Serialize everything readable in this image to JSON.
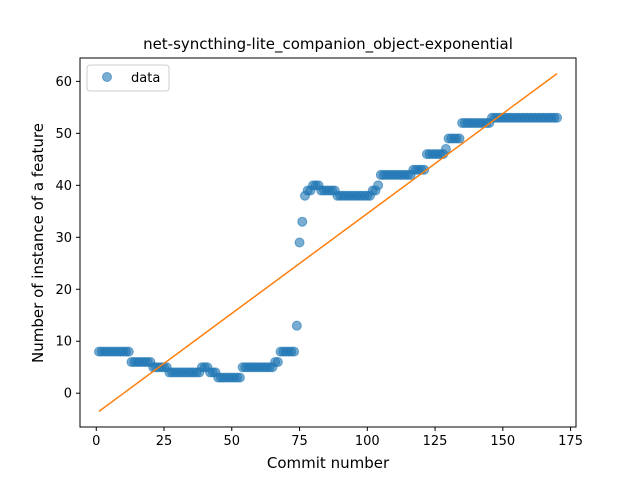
{
  "chart_data": {
    "type": "scatter",
    "title": "net-syncthing-lite_companion_object-exponential",
    "xlabel": "Commit number",
    "ylabel": "Number of instance of a feature",
    "xlim": [
      -6,
      177
    ],
    "ylim": [
      -6.5,
      64.5
    ],
    "xticks": [
      0,
      25,
      50,
      75,
      100,
      125,
      150,
      175
    ],
    "yticks": [
      0,
      10,
      20,
      30,
      40,
      50,
      60
    ],
    "grid": false,
    "legend": {
      "placement": "top-left",
      "entries": [
        "data"
      ]
    },
    "series": [
      {
        "name": "data",
        "kind": "scatter",
        "color": "#1f77b4",
        "points": [
          [
            1,
            8
          ],
          [
            2,
            8
          ],
          [
            3,
            8
          ],
          [
            4,
            8
          ],
          [
            5,
            8
          ],
          [
            6,
            8
          ],
          [
            7,
            8
          ],
          [
            8,
            8
          ],
          [
            9,
            8
          ],
          [
            10,
            8
          ],
          [
            11,
            8
          ],
          [
            12,
            8
          ],
          [
            13,
            6
          ],
          [
            14,
            6
          ],
          [
            15,
            6
          ],
          [
            16,
            6
          ],
          [
            17,
            6
          ],
          [
            18,
            6
          ],
          [
            19,
            6
          ],
          [
            20,
            6
          ],
          [
            21,
            5
          ],
          [
            22,
            5
          ],
          [
            23,
            5
          ],
          [
            24,
            5
          ],
          [
            25,
            5
          ],
          [
            26,
            5
          ],
          [
            27,
            4
          ],
          [
            28,
            4
          ],
          [
            29,
            4
          ],
          [
            30,
            4
          ],
          [
            31,
            4
          ],
          [
            32,
            4
          ],
          [
            33,
            4
          ],
          [
            34,
            4
          ],
          [
            35,
            4
          ],
          [
            36,
            4
          ],
          [
            37,
            4
          ],
          [
            38,
            4
          ],
          [
            39,
            5
          ],
          [
            40,
            5
          ],
          [
            41,
            5
          ],
          [
            42,
            4
          ],
          [
            43,
            4
          ],
          [
            44,
            4
          ],
          [
            45,
            3
          ],
          [
            46,
            3
          ],
          [
            47,
            3
          ],
          [
            48,
            3
          ],
          [
            49,
            3
          ],
          [
            50,
            3
          ],
          [
            51,
            3
          ],
          [
            52,
            3
          ],
          [
            53,
            3
          ],
          [
            54,
            5
          ],
          [
            55,
            5
          ],
          [
            56,
            5
          ],
          [
            57,
            5
          ],
          [
            58,
            5
          ],
          [
            59,
            5
          ],
          [
            60,
            5
          ],
          [
            61,
            5
          ],
          [
            62,
            5
          ],
          [
            63,
            5
          ],
          [
            64,
            5
          ],
          [
            65,
            5
          ],
          [
            66,
            6
          ],
          [
            67,
            6
          ],
          [
            68,
            8
          ],
          [
            69,
            8
          ],
          [
            70,
            8
          ],
          [
            71,
            8
          ],
          [
            72,
            8
          ],
          [
            73,
            8
          ],
          [
            74,
            13
          ],
          [
            75,
            29
          ],
          [
            76,
            33
          ],
          [
            77,
            38
          ],
          [
            78,
            39
          ],
          [
            79,
            39
          ],
          [
            80,
            40
          ],
          [
            81,
            40
          ],
          [
            82,
            40
          ],
          [
            83,
            39
          ],
          [
            84,
            39
          ],
          [
            85,
            39
          ],
          [
            86,
            39
          ],
          [
            87,
            39
          ],
          [
            88,
            39
          ],
          [
            89,
            38
          ],
          [
            90,
            38
          ],
          [
            91,
            38
          ],
          [
            92,
            38
          ],
          [
            93,
            38
          ],
          [
            94,
            38
          ],
          [
            95,
            38
          ],
          [
            96,
            38
          ],
          [
            97,
            38
          ],
          [
            98,
            38
          ],
          [
            99,
            38
          ],
          [
            100,
            38
          ],
          [
            101,
            38
          ],
          [
            102,
            39
          ],
          [
            103,
            39
          ],
          [
            104,
            40
          ],
          [
            105,
            42
          ],
          [
            106,
            42
          ],
          [
            107,
            42
          ],
          [
            108,
            42
          ],
          [
            109,
            42
          ],
          [
            110,
            42
          ],
          [
            111,
            42
          ],
          [
            112,
            42
          ],
          [
            113,
            42
          ],
          [
            114,
            42
          ],
          [
            115,
            42
          ],
          [
            116,
            42
          ],
          [
            117,
            43
          ],
          [
            118,
            43
          ],
          [
            119,
            43
          ],
          [
            120,
            43
          ],
          [
            121,
            43
          ],
          [
            122,
            46
          ],
          [
            123,
            46
          ],
          [
            124,
            46
          ],
          [
            125,
            46
          ],
          [
            126,
            46
          ],
          [
            127,
            46
          ],
          [
            128,
            46
          ],
          [
            129,
            47
          ],
          [
            130,
            49
          ],
          [
            131,
            49
          ],
          [
            132,
            49
          ],
          [
            133,
            49
          ],
          [
            134,
            49
          ],
          [
            135,
            52
          ],
          [
            136,
            52
          ],
          [
            137,
            52
          ],
          [
            138,
            52
          ],
          [
            139,
            52
          ],
          [
            140,
            52
          ],
          [
            141,
            52
          ],
          [
            142,
            52
          ],
          [
            143,
            52
          ],
          [
            144,
            52
          ],
          [
            145,
            52
          ],
          [
            146,
            53
          ],
          [
            147,
            53
          ],
          [
            148,
            53
          ],
          [
            149,
            53
          ],
          [
            150,
            53
          ],
          [
            151,
            53
          ],
          [
            152,
            53
          ],
          [
            153,
            53
          ],
          [
            154,
            53
          ],
          [
            155,
            53
          ],
          [
            156,
            53
          ],
          [
            157,
            53
          ],
          [
            158,
            53
          ],
          [
            159,
            53
          ],
          [
            160,
            53
          ],
          [
            161,
            53
          ],
          [
            162,
            53
          ],
          [
            163,
            53
          ],
          [
            164,
            53
          ],
          [
            165,
            53
          ],
          [
            166,
            53
          ],
          [
            167,
            53
          ],
          [
            168,
            53
          ],
          [
            169,
            53
          ],
          [
            170,
            53
          ]
        ]
      },
      {
        "name": "",
        "kind": "line",
        "color": "#ff7f0e",
        "points": [
          [
            1,
            -3.5
          ],
          [
            170,
            61.5
          ]
        ]
      }
    ]
  }
}
